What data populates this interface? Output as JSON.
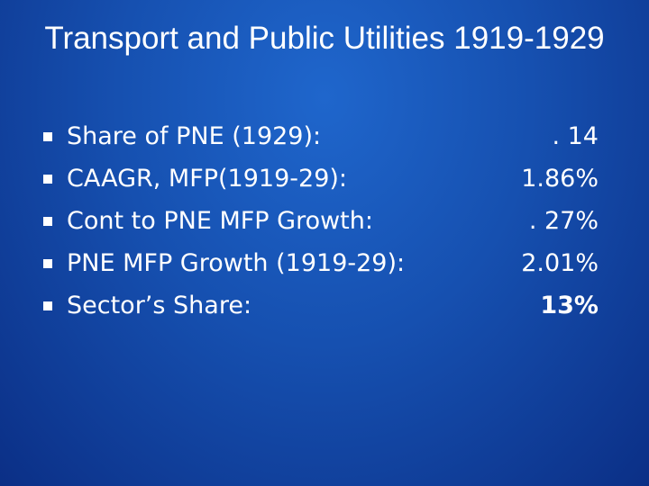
{
  "header": {
    "title": "Transport and Public Utilities 1919-1929"
  },
  "bullets": [
    {
      "label": "Share of PNE (1929):",
      "value": ". 14"
    },
    {
      "label": "CAAGR, MFP(1919-29):",
      "value": "1.86%"
    },
    {
      "label": "Cont to PNE MFP Growth:",
      "value": ". 27%"
    },
    {
      "label": "PNE MFP Growth (1919-29):",
      "value": "2.01%"
    },
    {
      "label": "Sector’s Share:",
      "value": "13%"
    }
  ]
}
